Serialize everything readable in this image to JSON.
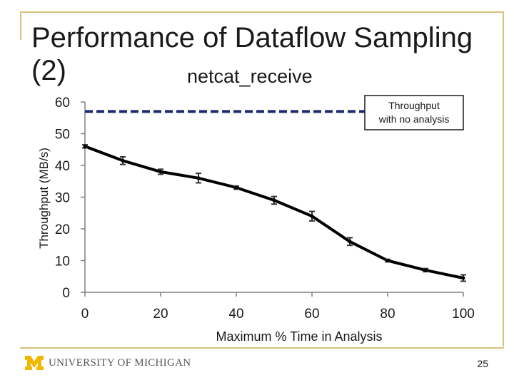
{
  "slide": {
    "title": "Performance of Dataflow Sampling (2)",
    "page_number": "25",
    "footer_logo_text": "UNIVERSITY OF MICHIGAN",
    "footer_logo_mark": "M"
  },
  "chart_data": {
    "type": "line",
    "title": "netcat_receive",
    "xlabel": "Maximum % Time in Analysis",
    "ylabel": "Throughput (MB/s)",
    "xlim": [
      0,
      100
    ],
    "ylim": [
      0,
      60
    ],
    "xticks": [
      0,
      20,
      40,
      60,
      80,
      100
    ],
    "yticks": [
      0,
      10,
      20,
      30,
      40,
      50,
      60
    ],
    "grid": false,
    "series": [
      {
        "values": [
          {
            "x": 0,
            "y": 46
          },
          {
            "x": 10,
            "y": 41.5
          },
          {
            "x": 20,
            "y": 38
          },
          {
            "x": 30,
            "y": 36
          },
          {
            "x": 40,
            "y": 33
          },
          {
            "x": 50,
            "y": 29
          },
          {
            "x": 60,
            "y": 24
          },
          {
            "x": 70,
            "y": 16
          },
          {
            "x": 80,
            "y": 10
          },
          {
            "x": 90,
            "y": 7
          },
          {
            "x": 100,
            "y": 4.5
          }
        ],
        "error": [
          0.5,
          1.2,
          0.8,
          1.5,
          0.5,
          1.2,
          1.5,
          1.2,
          0.4,
          0.5,
          1.0
        ],
        "color": "#000000"
      }
    ],
    "reference_line": {
      "y": 57,
      "color": "#1f2a6e",
      "style": "dashed",
      "label": "Throughput with no analysis"
    }
  },
  "colors": {
    "frame": "#d9c27a",
    "logo_maize": "#f2b800"
  }
}
